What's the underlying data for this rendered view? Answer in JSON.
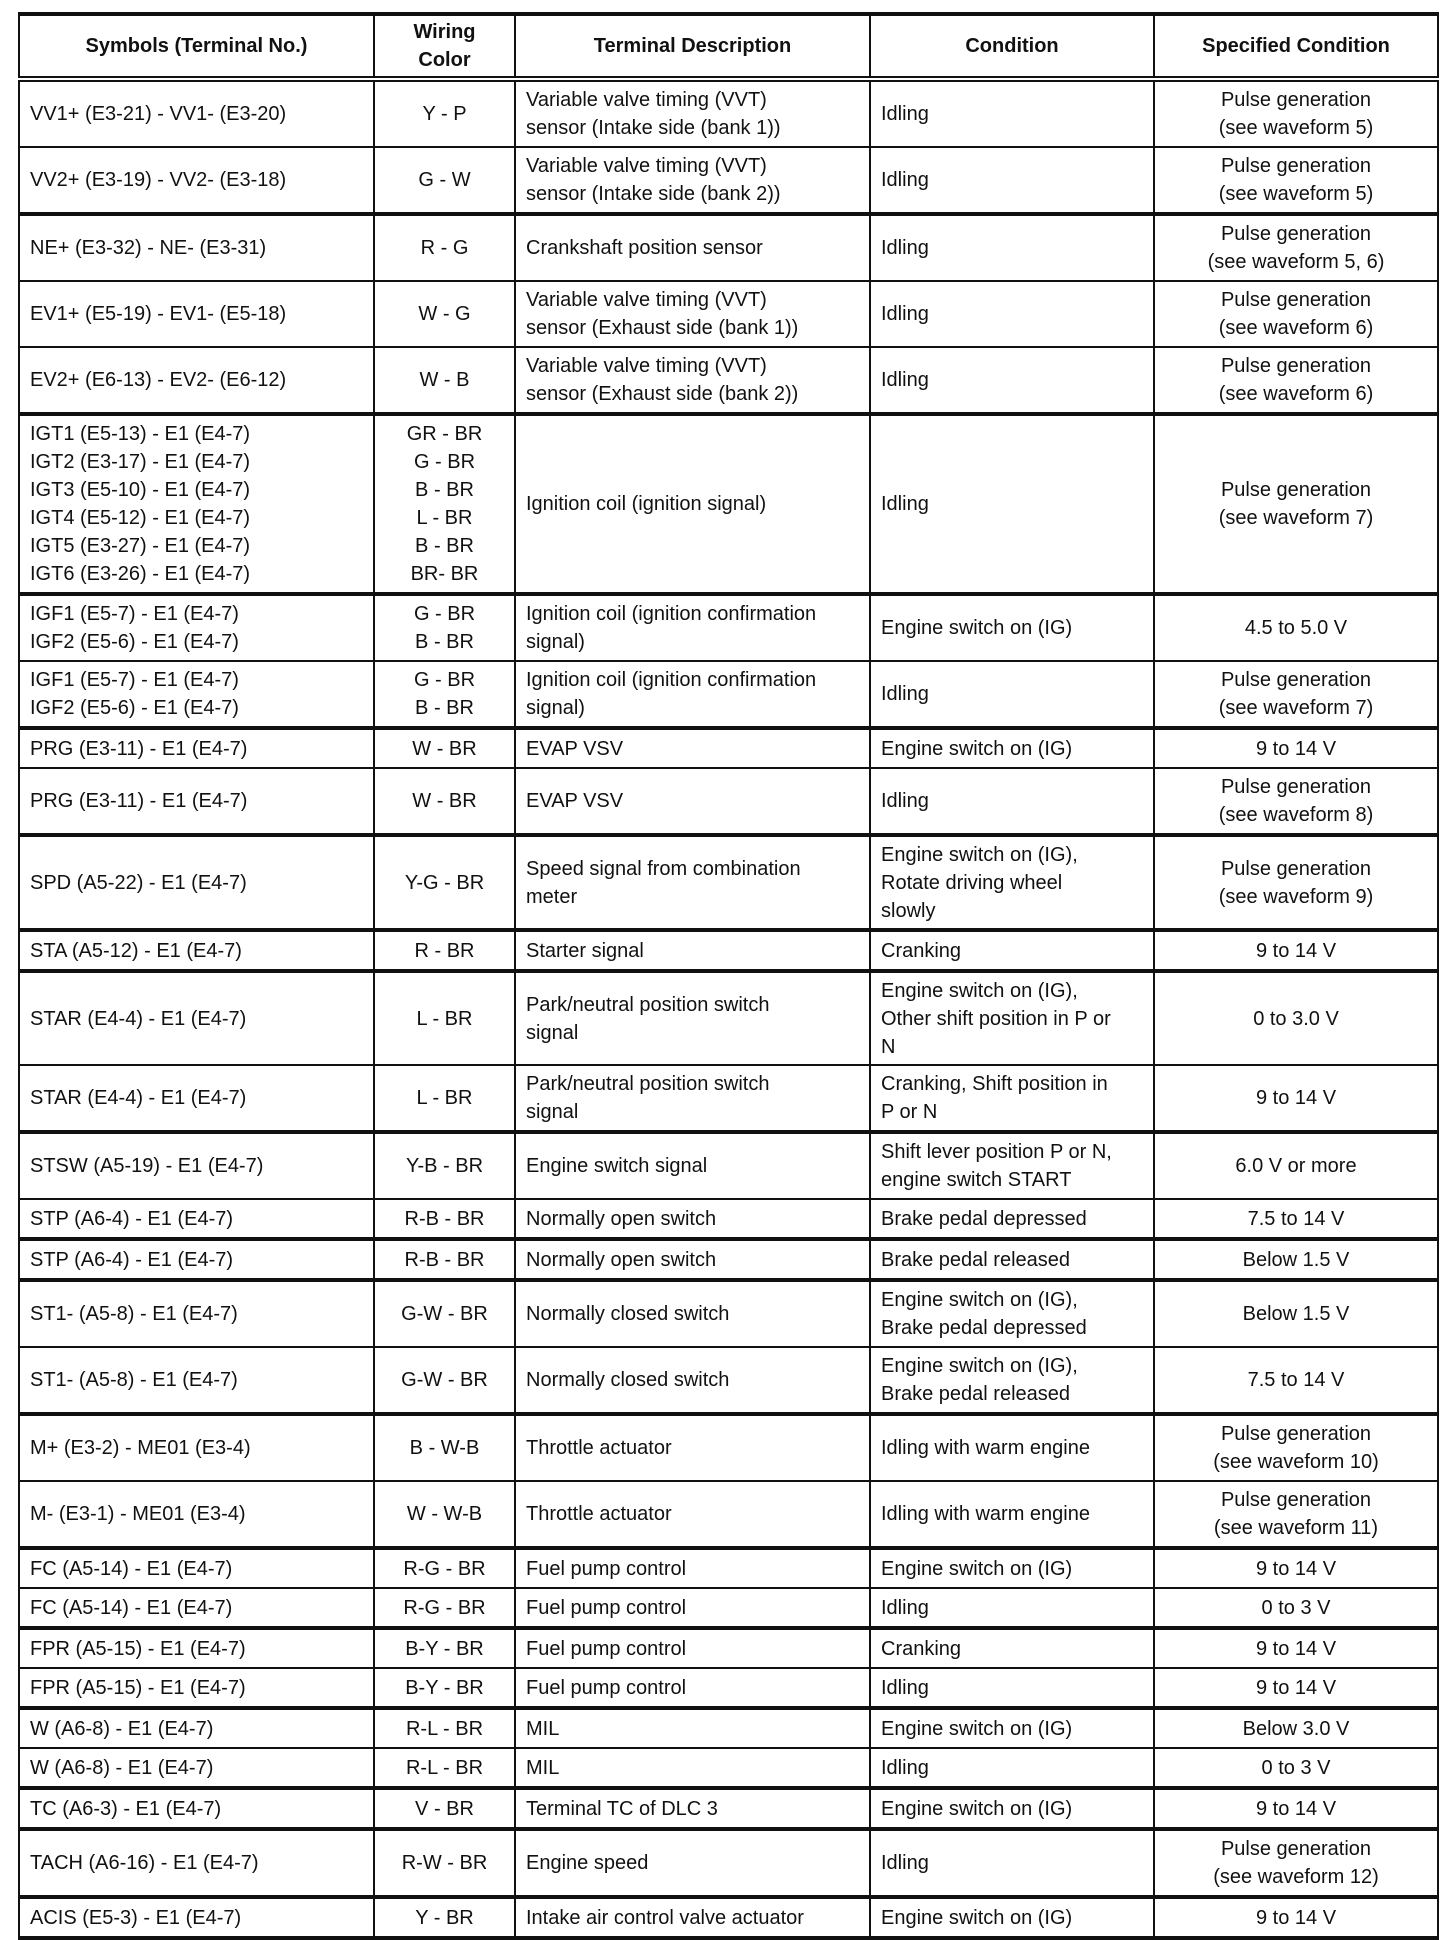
{
  "headers": [
    "Symbols (Terminal No.)",
    "Wiring\nColor",
    "Terminal Description",
    "Condition",
    "Specified Condition"
  ],
  "rows": [
    {
      "symbol": "VV1+ (E3-21) - VV1- (E3-20)",
      "wiring": "Y - P",
      "description": "Variable valve timing (VVT)\nsensor (Intake side (bank 1))",
      "condition": "Idling",
      "specified": "Pulse generation\n(see waveform 5)",
      "size": "h2"
    },
    {
      "symbol": "VV2+ (E3-19) - VV2- (E3-18)",
      "wiring": "G - W",
      "description": "Variable valve timing (VVT)\nsensor (Intake side (bank 2))",
      "condition": "Idling",
      "specified": "Pulse generation\n(see waveform 5)",
      "size": "h2"
    },
    {
      "symbol": "NE+ (E3-32) - NE- (E3-31)",
      "wiring": "R - G",
      "description": "Crankshaft position sensor",
      "condition": "Idling",
      "specified": "Pulse generation\n(see waveform 5, 6)",
      "size": "h2"
    },
    {
      "symbol": "EV1+ (E5-19) - EV1- (E5-18)",
      "wiring": "W - G",
      "description": "Variable valve timing (VVT)\nsensor (Exhaust side (bank 1))",
      "condition": "Idling",
      "specified": "Pulse generation\n(see waveform 6)",
      "size": "h2"
    },
    {
      "symbol": "EV2+ (E6-13) - EV2- (E6-12)",
      "wiring": "W - B",
      "description": "Variable valve timing (VVT)\nsensor (Exhaust side (bank 2))",
      "condition": "Idling",
      "specified": "Pulse generation\n(see waveform 6)",
      "size": "h2"
    },
    {
      "symbol": "IGT1 (E5-13) - E1 (E4-7)\nIGT2 (E3-17) - E1 (E4-7)\nIGT3 (E5-10) - E1 (E4-7)\nIGT4 (E5-12) - E1 (E4-7)\nIGT5 (E3-27) - E1 (E4-7)\nIGT6 (E3-26) - E1 (E4-7)",
      "wiring": "GR - BR\nG - BR\nB - BR\nL - BR\nB - BR\nBR- BR",
      "description": "Ignition coil (ignition signal)",
      "condition": "Idling",
      "specified": "Pulse generation\n(see waveform 7)",
      "size": "h6"
    },
    {
      "symbol": "IGF1 (E5-7) - E1 (E4-7)\nIGF2 (E5-6) - E1 (E4-7)",
      "wiring": "G - BR\nB - BR",
      "description": "Ignition coil (ignition confirmation\nsignal)",
      "condition": "Engine switch on (IG)",
      "specified": "4.5 to 5.0 V",
      "size": "h2"
    },
    {
      "symbol": "IGF1 (E5-7) - E1 (E4-7)\nIGF2 (E5-6) - E1 (E4-7)",
      "wiring": "G - BR\nB - BR",
      "description": "Ignition coil (ignition confirmation\nsignal)",
      "condition": "Idling",
      "specified": "Pulse generation\n(see waveform 7)",
      "size": "h2"
    },
    {
      "symbol": "PRG (E3-11) - E1 (E4-7)",
      "wiring": "W - BR",
      "description": "EVAP VSV",
      "condition": "Engine switch on (IG)",
      "specified": "9 to 14 V",
      "size": "h1"
    },
    {
      "symbol": "PRG (E3-11) - E1 (E4-7)",
      "wiring": "W - BR",
      "description": "EVAP VSV",
      "condition": "Idling",
      "specified": "Pulse generation\n(see waveform 8)",
      "size": "h2"
    },
    {
      "symbol": "SPD (A5-22) - E1 (E4-7)",
      "wiring": "Y-G - BR",
      "description": "Speed signal from combination\nmeter",
      "condition": "Engine switch on (IG),\nRotate driving wheel\nslowly",
      "specified": "Pulse generation\n(see waveform 9)",
      "size": "h3"
    },
    {
      "symbol": "STA (A5-12) - E1 (E4-7)",
      "wiring": "R - BR",
      "description": "Starter signal",
      "condition": "Cranking",
      "specified": "9 to 14 V",
      "size": "h1"
    },
    {
      "symbol": "STAR (E4-4) - E1 (E4-7)",
      "wiring": "L - BR",
      "description": "Park/neutral position switch\nsignal",
      "condition": "Engine switch on (IG),\nOther shift position in P or\nN",
      "specified": "0 to 3.0 V",
      "size": "h3"
    },
    {
      "symbol": "STAR (E4-4) - E1 (E4-7)",
      "wiring": "L - BR",
      "description": "Park/neutral position switch\nsignal",
      "condition": "Cranking, Shift position in\nP or N",
      "specified": "9 to 14 V",
      "size": "h2"
    },
    {
      "symbol": "STSW (A5-19) - E1 (E4-7)",
      "wiring": "Y-B - BR",
      "description": "Engine switch signal",
      "condition": "Shift lever position P or N,\nengine switch START",
      "specified": "6.0 V or more",
      "size": "h2"
    },
    {
      "symbol": "STP (A6-4) - E1 (E4-7)",
      "wiring": "R-B - BR",
      "description": "Normally open switch",
      "condition": "Brake pedal depressed",
      "specified": "7.5 to 14 V",
      "size": "h1"
    },
    {
      "symbol": "STP (A6-4) - E1 (E4-7)",
      "wiring": "R-B - BR",
      "description": "Normally open switch",
      "condition": "Brake pedal released",
      "specified": "Below 1.5 V",
      "size": "h1"
    },
    {
      "symbol": "ST1- (A5-8) - E1 (E4-7)",
      "wiring": "G-W - BR",
      "description": "Normally closed switch",
      "condition": "Engine switch on (IG),\nBrake pedal depressed",
      "specified": "Below 1.5 V",
      "size": "h2"
    },
    {
      "symbol": "ST1- (A5-8) - E1 (E4-7)",
      "wiring": "G-W - BR",
      "description": "Normally closed switch",
      "condition": "Engine switch on (IG),\nBrake pedal released",
      "specified": "7.5 to 14 V",
      "size": "h2"
    },
    {
      "symbol": "M+ (E3-2) - ME01 (E3-4)",
      "wiring": "B - W-B",
      "description": "Throttle actuator",
      "condition": "Idling with warm engine",
      "specified": "Pulse generation\n(see waveform 10)",
      "size": "h2"
    },
    {
      "symbol": "M- (E3-1) - ME01 (E3-4)",
      "wiring": "W - W-B",
      "description": "Throttle actuator",
      "condition": "Idling with warm engine",
      "specified": "Pulse generation\n(see waveform 11)",
      "size": "h2"
    },
    {
      "symbol": "FC (A5-14) - E1 (E4-7)",
      "wiring": "R-G - BR",
      "description": "Fuel pump control",
      "condition": "Engine switch on (IG)",
      "specified": "9 to 14 V",
      "size": "h1"
    },
    {
      "symbol": "FC (A5-14) - E1 (E4-7)",
      "wiring": "R-G - BR",
      "description": "Fuel pump control",
      "condition": "Idling",
      "specified": "0 to 3 V",
      "size": "h1"
    },
    {
      "symbol": "FPR (A5-15) - E1 (E4-7)",
      "wiring": "B-Y - BR",
      "description": "Fuel pump control",
      "condition": "Cranking",
      "specified": "9 to 14 V",
      "size": "h1"
    },
    {
      "symbol": "FPR (A5-15) - E1 (E4-7)",
      "wiring": "B-Y - BR",
      "description": "Fuel pump control",
      "condition": "Idling",
      "specified": "9 to 14 V",
      "size": "h1"
    },
    {
      "symbol": "W (A6-8) - E1 (E4-7)",
      "wiring": "R-L - BR",
      "description": "MIL",
      "condition": "Engine switch on (IG)",
      "specified": "Below 3.0 V",
      "size": "h1"
    },
    {
      "symbol": "W (A6-8) - E1 (E4-7)",
      "wiring": "R-L - BR",
      "description": "MIL",
      "condition": "Idling",
      "specified": "0 to 3 V",
      "size": "h1"
    },
    {
      "symbol": "TC (A6-3) - E1 (E4-7)",
      "wiring": "V - BR",
      "description": "Terminal TC of DLC 3",
      "condition": "Engine switch on (IG)",
      "specified": "9 to 14 V",
      "size": "h1"
    },
    {
      "symbol": "TACH (A6-16) - E1 (E4-7)",
      "wiring": "R-W - BR",
      "description": "Engine speed",
      "condition": "Idling",
      "specified": "Pulse generation\n(see waveform 12)",
      "size": "h2"
    },
    {
      "symbol": "ACIS (E5-3) - E1 (E4-7)",
      "wiring": "Y - BR",
      "description": "Intake air control valve actuator",
      "condition": "Engine switch on (IG)",
      "specified": "9 to 14 V",
      "size": "h1"
    }
  ]
}
